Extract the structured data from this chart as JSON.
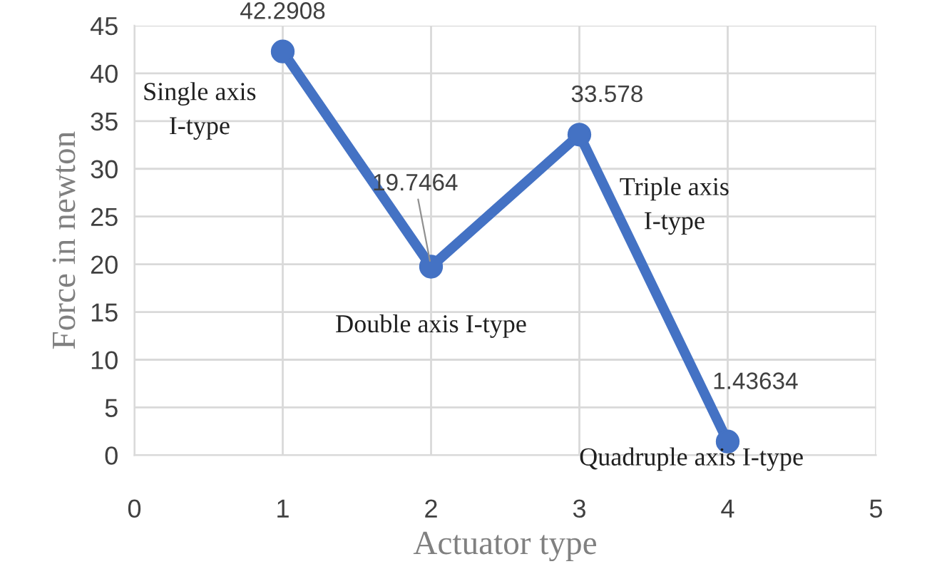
{
  "chart_data": {
    "type": "line",
    "xlabel": "Actuator type",
    "ylabel": "Force in newton",
    "x": [
      1,
      2,
      3,
      4
    ],
    "series": [
      {
        "color": "#4472c4",
        "values": [
          42.2908,
          19.7464,
          33.578,
          1.43634
        ]
      }
    ],
    "xlim": [
      0,
      5
    ],
    "xticks": [
      0,
      1,
      2,
      3,
      4,
      5
    ],
    "ylim": [
      0,
      45
    ],
    "yticks": [
      0,
      5,
      10,
      15,
      20,
      25,
      30,
      35,
      40,
      45
    ],
    "grid": true,
    "marker": "circle",
    "line_style": "solid",
    "data_labels": true,
    "annotations": [
      {
        "text": "Single axis\nI-type",
        "x": 1,
        "y": 42.2908
      },
      {
        "text": "Double axis I-type",
        "x": 2,
        "y": 19.7464
      },
      {
        "text": "Triple axis\nI-type",
        "x": 3,
        "y": 33.578
      },
      {
        "text": "Quadruple axis I-type",
        "x": 4,
        "y": 1.43634
      }
    ]
  }
}
